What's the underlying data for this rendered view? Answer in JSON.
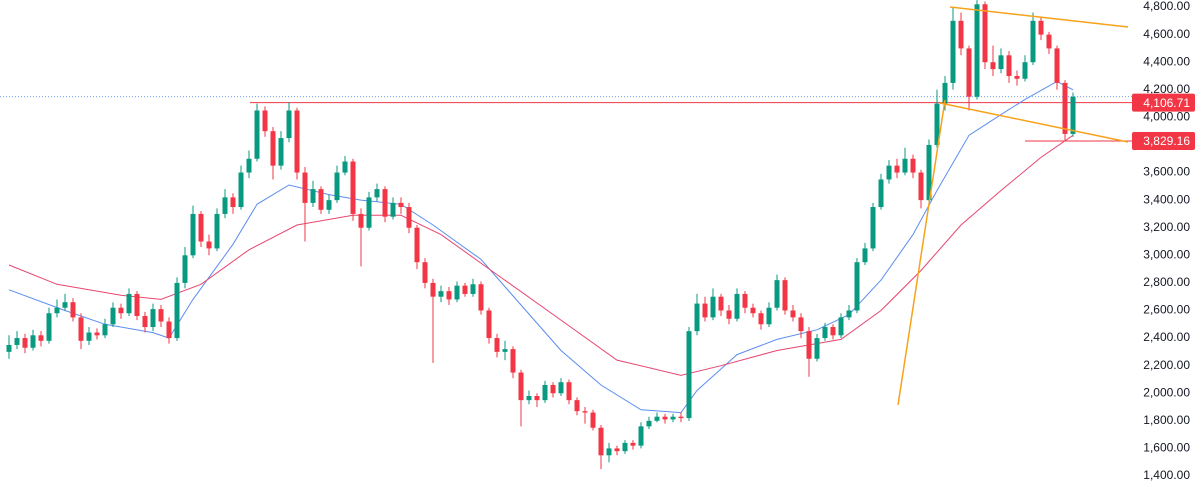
{
  "chart_data": {
    "type": "candlestick",
    "ylim": [
      1226,
      4851
    ],
    "yticks": [
      {
        "value": 1400,
        "label": "1,400.00"
      },
      {
        "value": 1600,
        "label": "1,600.00"
      },
      {
        "value": 1800,
        "label": "1,800.00"
      },
      {
        "value": 2000,
        "label": "2,000.00"
      },
      {
        "value": 2200,
        "label": "2,200.00"
      },
      {
        "value": 2400,
        "label": "2,400.00"
      },
      {
        "value": 2600,
        "label": "2,600.00"
      },
      {
        "value": 2800,
        "label": "2,800.00"
      },
      {
        "value": 3000,
        "label": "3,000.00"
      },
      {
        "value": 3200,
        "label": "3,200.00"
      },
      {
        "value": 3400,
        "label": "3,400.00"
      },
      {
        "value": 3600,
        "label": "3,600.00"
      },
      {
        "value": 3800,
        "label": "3,800.00"
      },
      {
        "value": 4000,
        "label": "4,000.00"
      },
      {
        "value": 4200,
        "label": "4,200.00"
      },
      {
        "value": 4400,
        "label": "4,400.00"
      },
      {
        "value": 4600,
        "label": "4,600.00"
      },
      {
        "value": 4800,
        "label": "4,800.00"
      }
    ],
    "up_color": "#089981",
    "down_color": "#f23645",
    "ohlc": [
      [
        2300,
        2420,
        2250,
        2350
      ],
      [
        2350,
        2450,
        2320,
        2400
      ],
      [
        2400,
        2430,
        2290,
        2330
      ],
      [
        2330,
        2460,
        2310,
        2420
      ],
      [
        2420,
        2450,
        2340,
        2380
      ],
      [
        2380,
        2620,
        2360,
        2580
      ],
      [
        2580,
        2680,
        2550,
        2620
      ],
      [
        2620,
        2720,
        2600,
        2660
      ],
      [
        2660,
        2690,
        2520,
        2550
      ],
      [
        2550,
        2580,
        2320,
        2380
      ],
      [
        2380,
        2480,
        2350,
        2440
      ],
      [
        2440,
        2470,
        2390,
        2420
      ],
      [
        2420,
        2540,
        2400,
        2500
      ],
      [
        2500,
        2660,
        2480,
        2620
      ],
      [
        2620,
        2650,
        2540,
        2580
      ],
      [
        2580,
        2760,
        2560,
        2720
      ],
      [
        2720,
        2740,
        2530,
        2560
      ],
      [
        2560,
        2590,
        2440,
        2480
      ],
      [
        2480,
        2650,
        2450,
        2610
      ],
      [
        2610,
        2640,
        2480,
        2520
      ],
      [
        2520,
        2550,
        2360,
        2400
      ],
      [
        2400,
        2840,
        2380,
        2800
      ],
      [
        2800,
        3060,
        2760,
        3000
      ],
      [
        3000,
        3360,
        2980,
        3300
      ],
      [
        3300,
        3320,
        3060,
        3100
      ],
      [
        3100,
        3150,
        3000,
        3050
      ],
      [
        3050,
        3340,
        3030,
        3300
      ],
      [
        3300,
        3480,
        3270,
        3420
      ],
      [
        3420,
        3450,
        3300,
        3350
      ],
      [
        3350,
        3650,
        3330,
        3600
      ],
      [
        3600,
        3760,
        3560,
        3700
      ],
      [
        3700,
        4100,
        3680,
        4050
      ],
      [
        4050,
        4080,
        3860,
        3900
      ],
      [
        3900,
        3930,
        3550,
        3650
      ],
      [
        3650,
        3900,
        3620,
        3850
      ],
      [
        3850,
        4110,
        3820,
        4050
      ],
      [
        4050,
        4070,
        3550,
        3600
      ],
      [
        3600,
        3640,
        3100,
        3380
      ],
      [
        3380,
        3540,
        3350,
        3480
      ],
      [
        3480,
        3500,
        3300,
        3330
      ],
      [
        3330,
        3440,
        3300,
        3400
      ],
      [
        3400,
        3650,
        3380,
        3600
      ],
      [
        3600,
        3720,
        3580,
        3680
      ],
      [
        3680,
        3700,
        3250,
        3300
      ],
      [
        3300,
        3340,
        2920,
        3200
      ],
      [
        3200,
        3460,
        3180,
        3420
      ],
      [
        3420,
        3520,
        3390,
        3480
      ],
      [
        3480,
        3500,
        3240,
        3280
      ],
      [
        3280,
        3420,
        3260,
        3380
      ],
      [
        3380,
        3420,
        3300,
        3350
      ],
      [
        3350,
        3380,
        3160,
        3200
      ],
      [
        3200,
        3220,
        2900,
        2950
      ],
      [
        2950,
        2980,
        2760,
        2800
      ],
      [
        2800,
        2830,
        2220,
        2700
      ],
      [
        2700,
        2780,
        2660,
        2740
      ],
      [
        2740,
        2770,
        2640,
        2680
      ],
      [
        2680,
        2810,
        2660,
        2780
      ],
      [
        2780,
        2800,
        2700,
        2720
      ],
      [
        2720,
        2830,
        2700,
        2790
      ],
      [
        2790,
        2810,
        2570,
        2600
      ],
      [
        2600,
        2620,
        2360,
        2400
      ],
      [
        2400,
        2430,
        2260,
        2300
      ],
      [
        2300,
        2380,
        2240,
        2320
      ],
      [
        2320,
        2340,
        2110,
        2150
      ],
      [
        2150,
        2170,
        1760,
        1950
      ],
      [
        1950,
        2020,
        1920,
        1980
      ],
      [
        1980,
        2000,
        1900,
        1950
      ],
      [
        1950,
        2090,
        1930,
        2060
      ],
      [
        2060,
        2080,
        1970,
        2000
      ],
      [
        2000,
        2110,
        1980,
        2080
      ],
      [
        2080,
        2100,
        1920,
        1950
      ],
      [
        1950,
        1970,
        1840,
        1870
      ],
      [
        1870,
        1900,
        1780,
        1860
      ],
      [
        1860,
        1880,
        1730,
        1750
      ],
      [
        1750,
        1770,
        1450,
        1550
      ],
      [
        1550,
        1640,
        1500,
        1600
      ],
      [
        1600,
        1620,
        1550,
        1580
      ],
      [
        1580,
        1660,
        1560,
        1640
      ],
      [
        1640,
        1660,
        1590,
        1620
      ],
      [
        1620,
        1790,
        1600,
        1760
      ],
      [
        1760,
        1830,
        1740,
        1800
      ],
      [
        1800,
        1860,
        1790,
        1830
      ],
      [
        1830,
        1850,
        1780,
        1810
      ],
      [
        1810,
        1850,
        1790,
        1830
      ],
      [
        1830,
        1860,
        1790,
        1820
      ],
      [
        1820,
        2480,
        1800,
        2450
      ],
      [
        2450,
        2720,
        2420,
        2650
      ],
      [
        2650,
        2700,
        2520,
        2550
      ],
      [
        2550,
        2760,
        2530,
        2700
      ],
      [
        2700,
        2720,
        2560,
        2600
      ],
      [
        2600,
        2640,
        2500,
        2540
      ],
      [
        2540,
        2760,
        2520,
        2720
      ],
      [
        2720,
        2740,
        2580,
        2620
      ],
      [
        2620,
        2650,
        2550,
        2580
      ],
      [
        2580,
        2600,
        2460,
        2500
      ],
      [
        2500,
        2660,
        2480,
        2620
      ],
      [
        2620,
        2860,
        2600,
        2820
      ],
      [
        2820,
        2840,
        2570,
        2600
      ],
      [
        2600,
        2640,
        2520,
        2550
      ],
      [
        2550,
        2580,
        2400,
        2450
      ],
      [
        2450,
        2480,
        2120,
        2250
      ],
      [
        2250,
        2430,
        2230,
        2400
      ],
      [
        2400,
        2510,
        2380,
        2480
      ],
      [
        2480,
        2500,
        2390,
        2420
      ],
      [
        2420,
        2580,
        2400,
        2550
      ],
      [
        2550,
        2640,
        2530,
        2600
      ],
      [
        2600,
        2980,
        2580,
        2950
      ],
      [
        2950,
        3090,
        2930,
        3050
      ],
      [
        3050,
        3380,
        3030,
        3350
      ],
      [
        3350,
        3590,
        3330,
        3550
      ],
      [
        3550,
        3690,
        3520,
        3650
      ],
      [
        3650,
        3700,
        3560,
        3600
      ],
      [
        3600,
        3780,
        3580,
        3700
      ],
      [
        3700,
        3730,
        3560,
        3600
      ],
      [
        3600,
        3620,
        3340,
        3400
      ],
      [
        3400,
        3840,
        3380,
        3800
      ],
      [
        3800,
        4200,
        3780,
        4100
      ],
      [
        4100,
        4300,
        4050,
        4250
      ],
      [
        4250,
        4800,
        4200,
        4700
      ],
      [
        4700,
        4760,
        4450,
        4500
      ],
      [
        4500,
        4520,
        4050,
        4150
      ],
      [
        4150,
        4850,
        4130,
        4820
      ],
      [
        4820,
        4840,
        4350,
        4400
      ],
      [
        4400,
        4520,
        4300,
        4350
      ],
      [
        4350,
        4500,
        4320,
        4450
      ],
      [
        4450,
        4480,
        4250,
        4300
      ],
      [
        4300,
        4340,
        4230,
        4280
      ],
      [
        4280,
        4450,
        4260,
        4400
      ],
      [
        4400,
        4760,
        4380,
        4700
      ],
      [
        4700,
        4730,
        4560,
        4600
      ],
      [
        4600,
        4620,
        4460,
        4500
      ],
      [
        4500,
        4520,
        4200,
        4250
      ],
      [
        4250,
        4270,
        3830,
        3880
      ],
      [
        3880,
        4180,
        3860,
        4150
      ]
    ],
    "series": [
      {
        "color": "#5b8def",
        "x": [
          0,
          7,
          12,
          18,
          20,
          23,
          28,
          31,
          35,
          40,
          44,
          49,
          53,
          59,
          64,
          69,
          74,
          79,
          84,
          86,
          91,
          96,
          101,
          105,
          109,
          113,
          116,
          120,
          124,
          127,
          131,
          133
        ],
        "values": [
          2750,
          2600,
          2500,
          2440,
          2400,
          2680,
          3080,
          3370,
          3510,
          3440,
          3400,
          3370,
          3220,
          2970,
          2640,
          2310,
          2060,
          1880,
          1860,
          2020,
          2280,
          2390,
          2460,
          2570,
          2820,
          3150,
          3470,
          3870,
          4020,
          4130,
          4260,
          4200
        ]
      },
      {
        "color": "#e8466e",
        "x": [
          0,
          6,
          14,
          19,
          24,
          30,
          36,
          43,
          49,
          54,
          61,
          69,
          76,
          84,
          89,
          96,
          104,
          109,
          114,
          119,
          124,
          129,
          133
        ],
        "values": [
          2930,
          2790,
          2710,
          2680,
          2790,
          3040,
          3220,
          3290,
          3290,
          3150,
          2860,
          2530,
          2240,
          2130,
          2200,
          2310,
          2390,
          2600,
          2890,
          3220,
          3470,
          3710,
          3870
        ]
      }
    ],
    "price_lines": {
      "color": "#f23645",
      "values": [
        4106.71,
        3829.16
      ],
      "value_labels": [
        "4,106.71",
        "3,829.16"
      ]
    },
    "current_price": {
      "color": "#5b8def",
      "value": 4150
    }
  }
}
